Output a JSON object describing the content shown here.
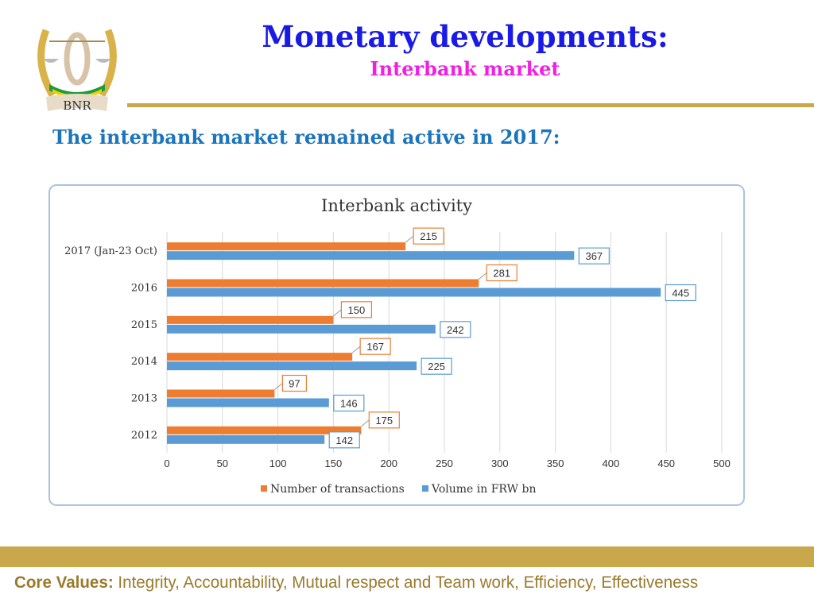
{
  "header": {
    "title": "Monetary  developments:",
    "subtitle": "Interbank market",
    "logo_text": "BNR"
  },
  "heading": "The interbank market remained active in 2017:",
  "footer": {
    "label": "Core Values:",
    "values": "Integrity, Accountability, Mutual respect and Team work, Efficiency, Effectiveness"
  },
  "colors": {
    "orange": "#ED7D31",
    "blue": "#5B9BD5",
    "gold": "#C9A84C"
  },
  "chart_data": {
    "type": "bar",
    "orientation": "horizontal",
    "title": "Interbank activity",
    "categories": [
      "2017 (Jan-23 Oct)",
      "2016",
      "2015",
      "2014",
      "2013",
      "2012"
    ],
    "series": [
      {
        "name": "Number of transactions",
        "color": "#ED7D31",
        "values": [
          215,
          281,
          150,
          167,
          97,
          175
        ]
      },
      {
        "name": "Volume in FRW bn",
        "color": "#5B9BD5",
        "values": [
          367,
          445,
          242,
          225,
          146,
          142
        ]
      }
    ],
    "xlim": [
      0,
      500
    ],
    "xticks": [
      0,
      50,
      100,
      150,
      200,
      250,
      300,
      350,
      400,
      450,
      500
    ],
    "grid": true,
    "legend": "bottom"
  }
}
